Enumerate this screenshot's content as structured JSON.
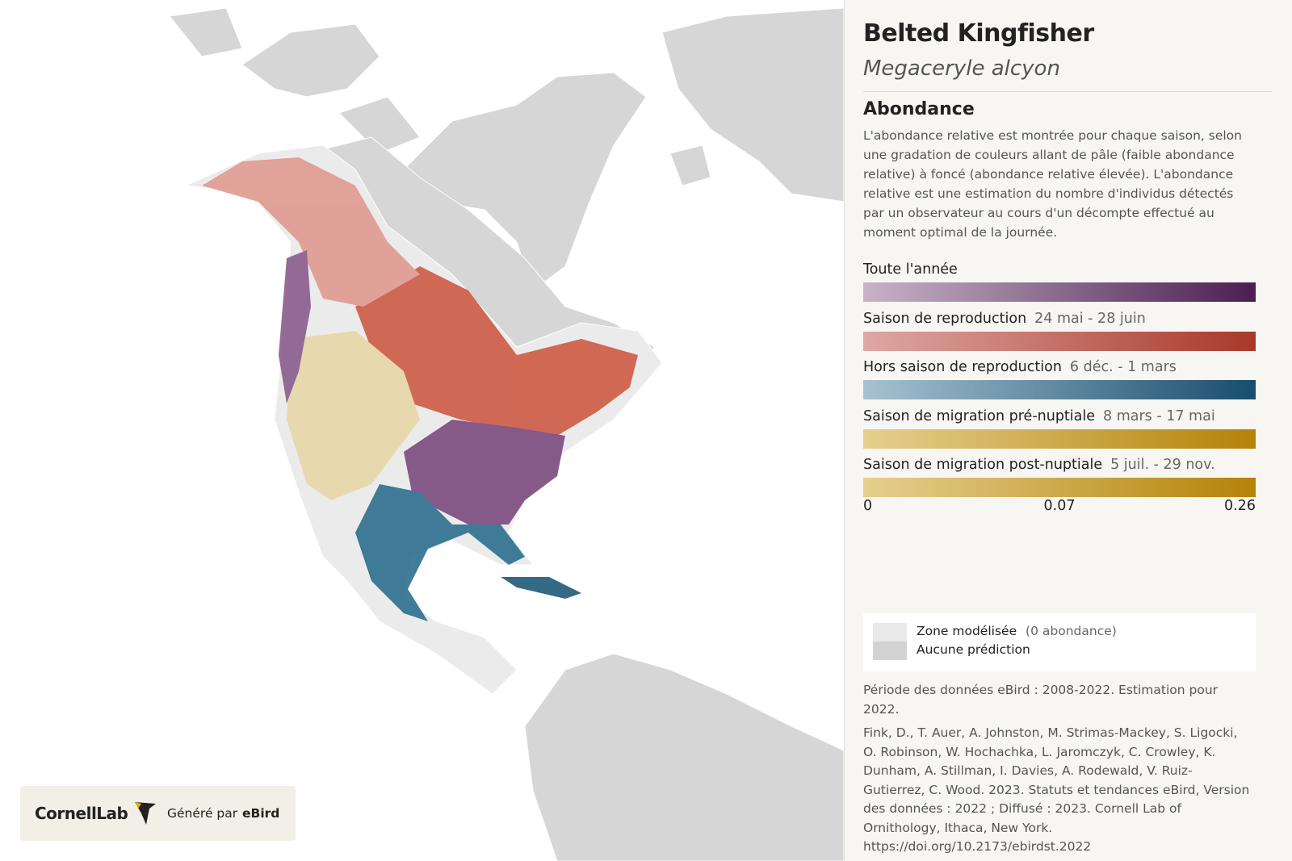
{
  "header": {
    "title": "Belted Kingfisher",
    "subtitle": "Megaceryle alcyon"
  },
  "abundance": {
    "heading": "Abondance",
    "description": "L'abondance relative est montrée pour chaque saison, selon une gradation de couleurs allant de pâle (faible abondance relative) à foncé (abondance relative élevée). L'abondance relative est une estimation du nombre d'individus détectés par un observateur au cours d'un décompte effectué au moment optimal de la journée.",
    "seasons": [
      {
        "name": "Toute l'année",
        "colors": [
          "#c8b3c8",
          "#4b1f51"
        ]
      },
      {
        "name": "Saison de reproduction",
        "dates": "24 mai - 28 juin",
        "colors": [
          "#dea8a4",
          "#a8382a"
        ]
      },
      {
        "name": "Hors saison de reproduction",
        "dates": "6 déc. - 1 mars",
        "colors": [
          "#a7c2d1",
          "#184d6d"
        ]
      },
      {
        "name": "Saison de migration pré-nuptiale",
        "dates": "8 mars - 17 mai",
        "colors": [
          "#e6cf8f",
          "#b48307"
        ]
      },
      {
        "name": "Saison de migration post-nuptiale",
        "dates": "5 juil. - 29 nov.",
        "colors": [
          "#e6cf8f",
          "#b48307"
        ]
      }
    ],
    "scale": [
      0,
      0.07,
      0.26
    ]
  },
  "legend": {
    "modeled": "Zone modélisée",
    "modeled_note": "(0 abondance)",
    "no_prediction": "Aucune prédiction"
  },
  "footer": {
    "period": "Période des données eBird : 2008-2022. Estimation pour 2022.",
    "citation": "Fink, D., T. Auer, A. Johnston, M. Strimas-Mackey, S. Ligocki, O. Robinson, W. Hochachka, L. Jaromczyk, C. Crowley, K. Dunham, A. Stillman, I. Davies, A. Rodewald, V. Ruiz-Gutierrez, C. Wood. 2023. Statuts et tendances eBird, Version des données : 2022 ; Diffusé : 2023. Cornell Lab of Ornithology, Ithaca, New York. https://doi.org/10.2173/ebirdst.2022"
  },
  "logo": {
    "brand": "CornellLab",
    "powered": "Généré par",
    "product": "eBird"
  }
}
